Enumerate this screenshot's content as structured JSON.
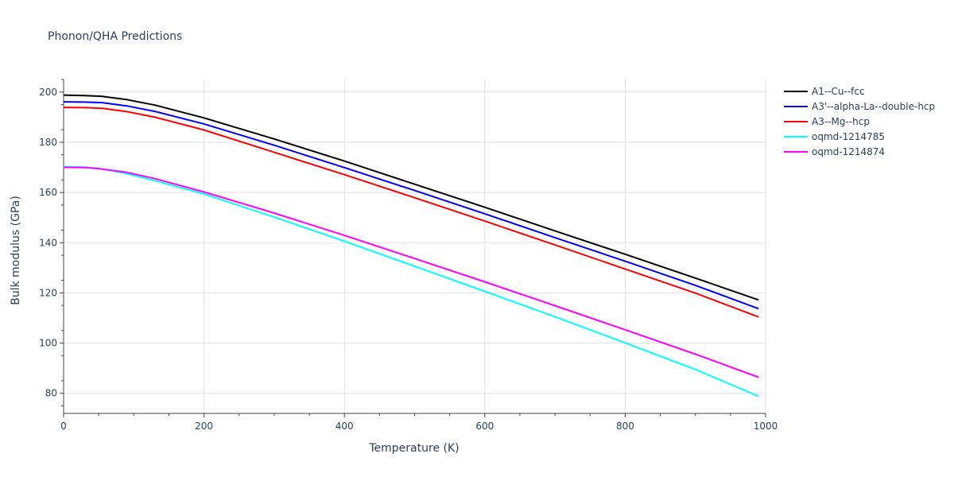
{
  "chart_data": {
    "type": "line",
    "title": "Phonon/QHA Predictions",
    "xlabel": "Temperature (K)",
    "ylabel": "Bulk modulus (GPa)",
    "xlim": [
      0,
      1000
    ],
    "ylim": [
      72,
      205
    ],
    "xticks": [
      0,
      200,
      400,
      600,
      800,
      1000
    ],
    "yticks": [
      80,
      100,
      120,
      140,
      160,
      180,
      200
    ],
    "grid": true,
    "legend_position": "top-right",
    "series": [
      {
        "name": "A1--Cu--fcc",
        "color": "#000000",
        "x": [
          0,
          30,
          55,
          90,
          130,
          200,
          300,
          400,
          500,
          600,
          700,
          800,
          900,
          990
        ],
        "y": [
          198.8,
          198.6,
          198.3,
          197.0,
          194.8,
          189.7,
          181.3,
          172.5,
          163.3,
          154.1,
          144.7,
          135.4,
          125.9,
          117.2
        ]
      },
      {
        "name": "A3'--alpha-La--double-hcp",
        "color": "#0000ff",
        "x": [
          0,
          30,
          55,
          90,
          130,
          200,
          300,
          400,
          500,
          600,
          700,
          800,
          900,
          990
        ],
        "y": [
          196.1,
          196.0,
          195.8,
          194.5,
          192.3,
          187.3,
          178.8,
          169.9,
          160.8,
          151.5,
          142.0,
          132.6,
          123.0,
          113.7
        ]
      },
      {
        "name": "A3--Mg--hcp",
        "color": "#ff0000",
        "x": [
          0,
          30,
          55,
          90,
          130,
          200,
          300,
          400,
          500,
          600,
          700,
          800,
          900,
          990
        ],
        "y": [
          193.9,
          193.8,
          193.5,
          192.2,
          190.0,
          184.9,
          176.0,
          167.1,
          157.9,
          148.6,
          139.1,
          129.5,
          119.9,
          110.4
        ]
      },
      {
        "name": "oqmd-1214785",
        "color": "#00ffff",
        "x": [
          0,
          30,
          50,
          90,
          130,
          200,
          300,
          400,
          500,
          600,
          700,
          800,
          900,
          990
        ],
        "y": [
          170.3,
          170.1,
          169.6,
          167.5,
          164.7,
          159.4,
          150.2,
          140.6,
          130.6,
          120.6,
          110.5,
          100.1,
          89.5,
          78.8
        ]
      },
      {
        "name": "oqmd-1214874",
        "color": "#ff00ff",
        "x": [
          0,
          30,
          50,
          90,
          130,
          200,
          300,
          400,
          500,
          600,
          700,
          800,
          900,
          990
        ],
        "y": [
          170.0,
          169.9,
          169.5,
          168.0,
          165.5,
          160.2,
          151.8,
          142.9,
          133.7,
          124.4,
          114.9,
          105.3,
          95.6,
          86.4
        ]
      }
    ]
  }
}
